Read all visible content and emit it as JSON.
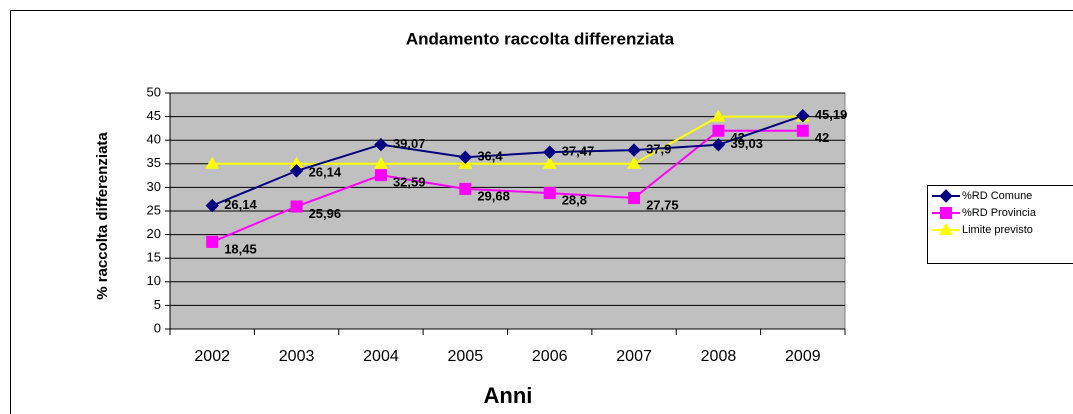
{
  "chart_data": {
    "type": "line",
    "title": "Andamento raccolta differenziata",
    "x_label": "Anni",
    "y_label": "% raccolta differenziata",
    "categories": [
      "2002",
      "2003",
      "2004",
      "2005",
      "2006",
      "2007",
      "2008",
      "2009"
    ],
    "series": [
      {
        "name": "%RD Comune",
        "color": "#000080",
        "marker": "diamond",
        "values": [
          26.14,
          33.5,
          39.07,
          36.4,
          37.47,
          37.9,
          39.03,
          45.19
        ],
        "value_labels": [
          "26,14",
          null,
          "39,07",
          "36,4",
          "37,47",
          "37,9",
          "39,03",
          "45,19"
        ]
      },
      {
        "name": "%RD Provincia",
        "color": "#ff00ff",
        "marker": "square",
        "values": [
          18.45,
          25.96,
          32.59,
          29.68,
          28.8,
          27.75,
          42,
          42
        ],
        "value_labels": [
          "18,45",
          "25,96",
          "32,59",
          "29,68",
          "28,8",
          "27,75",
          "42",
          "42"
        ]
      },
      {
        "name": "Limite previsto",
        "color": "#ffff00",
        "marker": "triangle",
        "values": [
          35,
          35,
          35,
          35,
          35,
          35,
          45,
          45
        ]
      }
    ],
    "annotations": [
      "26,14"
    ],
    "ylim": [
      0,
      50
    ],
    "yticks": [
      0,
      5,
      10,
      15,
      20,
      25,
      30,
      35,
      40,
      45,
      50
    ],
    "grid": true,
    "plot_background": "#c0c0c0",
    "legend": "right"
  }
}
